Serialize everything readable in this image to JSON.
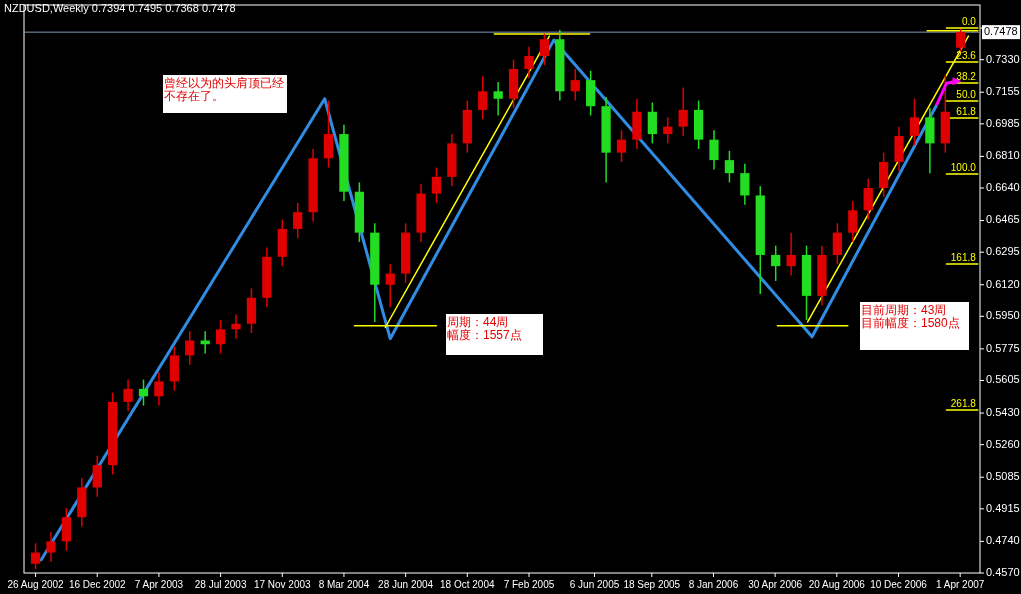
{
  "chart_data": {
    "type": "candlestick",
    "title": "NZDUSD,Weekly 0.7394 0.7495 0.7368 0.7478",
    "x": [
      "2002-08-26",
      "2002-09-23",
      "2002-10-21",
      "2002-11-18",
      "2002-12-16",
      "2003-01-13",
      "2003-02-10",
      "2003-03-10",
      "2003-04-07",
      "2003-05-05",
      "2003-06-02",
      "2003-06-30",
      "2003-07-28",
      "2003-08-25",
      "2003-09-22",
      "2003-10-20",
      "2003-11-17",
      "2003-12-15",
      "2004-01-12",
      "2004-02-09",
      "2004-03-08",
      "2004-04-05",
      "2004-05-03",
      "2004-05-31",
      "2004-06-28",
      "2004-07-26",
      "2004-08-23",
      "2004-09-20",
      "2004-10-18",
      "2004-11-15",
      "2004-12-13",
      "2005-01-10",
      "2005-02-07",
      "2005-03-07",
      "2005-04-04",
      "2005-05-02",
      "2005-05-30",
      "2005-06-27",
      "2005-07-25",
      "2005-08-22",
      "2005-09-19",
      "2005-10-17",
      "2005-11-14",
      "2005-12-12",
      "2006-01-09",
      "2006-02-06",
      "2006-03-06",
      "2006-04-03",
      "2006-05-01",
      "2006-05-29",
      "2006-06-26",
      "2006-07-24",
      "2006-08-21",
      "2006-09-18",
      "2006-10-16",
      "2006-11-13",
      "2006-12-11",
      "2007-01-08",
      "2007-02-05",
      "2007-03-05",
      "2007-04-02"
    ],
    "ohlc": [
      [
        0.462,
        0.473,
        0.459,
        0.468
      ],
      [
        0.468,
        0.479,
        0.463,
        0.474
      ],
      [
        0.474,
        0.492,
        0.469,
        0.487
      ],
      [
        0.487,
        0.508,
        0.482,
        0.503
      ],
      [
        0.503,
        0.52,
        0.498,
        0.515
      ],
      [
        0.515,
        0.554,
        0.51,
        0.549
      ],
      [
        0.549,
        0.561,
        0.544,
        0.556
      ],
      [
        0.556,
        0.561,
        0.547,
        0.552
      ],
      [
        0.552,
        0.565,
        0.547,
        0.56
      ],
      [
        0.56,
        0.579,
        0.555,
        0.574
      ],
      [
        0.574,
        0.587,
        0.569,
        0.582
      ],
      [
        0.582,
        0.587,
        0.575,
        0.58
      ],
      [
        0.58,
        0.593,
        0.575,
        0.588
      ],
      [
        0.588,
        0.596,
        0.583,
        0.591
      ],
      [
        0.591,
        0.61,
        0.586,
        0.605
      ],
      [
        0.605,
        0.632,
        0.6,
        0.627
      ],
      [
        0.627,
        0.647,
        0.622,
        0.642
      ],
      [
        0.642,
        0.656,
        0.637,
        0.651
      ],
      [
        0.651,
        0.685,
        0.646,
        0.68
      ],
      [
        0.68,
        0.711,
        0.675,
        0.693
      ],
      [
        0.693,
        0.698,
        0.657,
        0.662
      ],
      [
        0.662,
        0.667,
        0.635,
        0.64
      ],
      [
        0.64,
        0.645,
        0.592,
        0.612
      ],
      [
        0.612,
        0.623,
        0.6,
        0.618
      ],
      [
        0.618,
        0.645,
        0.613,
        0.64
      ],
      [
        0.64,
        0.666,
        0.635,
        0.661
      ],
      [
        0.661,
        0.675,
        0.656,
        0.67
      ],
      [
        0.67,
        0.693,
        0.665,
        0.688
      ],
      [
        0.688,
        0.711,
        0.683,
        0.706
      ],
      [
        0.706,
        0.724,
        0.701,
        0.716
      ],
      [
        0.716,
        0.721,
        0.703,
        0.712
      ],
      [
        0.712,
        0.733,
        0.707,
        0.728
      ],
      [
        0.728,
        0.74,
        0.723,
        0.735
      ],
      [
        0.735,
        0.747,
        0.73,
        0.744
      ],
      [
        0.744,
        0.749,
        0.711,
        0.716
      ],
      [
        0.716,
        0.728,
        0.711,
        0.722
      ],
      [
        0.722,
        0.727,
        0.703,
        0.708
      ],
      [
        0.708,
        0.713,
        0.667,
        0.683
      ],
      [
        0.683,
        0.695,
        0.678,
        0.69
      ],
      [
        0.69,
        0.712,
        0.685,
        0.705
      ],
      [
        0.705,
        0.71,
        0.688,
        0.693
      ],
      [
        0.693,
        0.702,
        0.688,
        0.697
      ],
      [
        0.697,
        0.718,
        0.692,
        0.706
      ],
      [
        0.706,
        0.711,
        0.685,
        0.69
      ],
      [
        0.69,
        0.695,
        0.674,
        0.679
      ],
      [
        0.679,
        0.684,
        0.667,
        0.672
      ],
      [
        0.672,
        0.677,
        0.655,
        0.66
      ],
      [
        0.66,
        0.665,
        0.607,
        0.628
      ],
      [
        0.628,
        0.633,
        0.614,
        0.622
      ],
      [
        0.622,
        0.64,
        0.617,
        0.628
      ],
      [
        0.628,
        0.633,
        0.593,
        0.606
      ],
      [
        0.606,
        0.633,
        0.601,
        0.628
      ],
      [
        0.628,
        0.645,
        0.623,
        0.64
      ],
      [
        0.64,
        0.657,
        0.635,
        0.652
      ],
      [
        0.652,
        0.669,
        0.647,
        0.664
      ],
      [
        0.664,
        0.683,
        0.659,
        0.678
      ],
      [
        0.678,
        0.697,
        0.673,
        0.692
      ],
      [
        0.692,
        0.712,
        0.687,
        0.702
      ],
      [
        0.702,
        0.707,
        0.672,
        0.688
      ],
      [
        0.688,
        0.725,
        0.683,
        0.705
      ],
      [
        0.7394,
        0.7495,
        0.7368,
        0.7478
      ]
    ],
    "colors": [
      "#e00000",
      "#e00000",
      "#e00000",
      "#e00000",
      "#e00000",
      "#e00000",
      "#e00000",
      "#22dd22",
      "#e00000",
      "#e00000",
      "#e00000",
      "#22dd22",
      "#e00000",
      "#e00000",
      "#e00000",
      "#e00000",
      "#e00000",
      "#e00000",
      "#e00000",
      "#e00000",
      "#22dd22",
      "#22dd22",
      "#22dd22",
      "#e00000",
      "#e00000",
      "#e00000",
      "#e00000",
      "#e00000",
      "#e00000",
      "#e00000",
      "#22dd22",
      "#e00000",
      "#e00000",
      "#e00000",
      "#22dd22",
      "#e00000",
      "#22dd22",
      "#22dd22",
      "#e00000",
      "#e00000",
      "#22dd22",
      "#e00000",
      "#e00000",
      "#22dd22",
      "#22dd22",
      "#22dd22",
      "#22dd22",
      "#22dd22",
      "#22dd22",
      "#e00000",
      "#22dd22",
      "#e00000",
      "#e00000",
      "#e00000",
      "#e00000",
      "#e00000",
      "#e00000",
      "#e00000",
      "#22dd22",
      "#e00000",
      "#e00000"
    ],
    "series": [
      {
        "type": "line",
        "color": "#2f8de4",
        "x": [
          "2002-09-05",
          "2004-02-02",
          "2004-05-31",
          "2005-03-24",
          "2006-07-06",
          "2007-02-17"
        ],
        "values": [
          0.464,
          0.712,
          0.583,
          0.7435,
          0.584,
          0.7085
        ]
      },
      {
        "type": "line",
        "color": "#ffff00",
        "x": [
          "2004-03-27",
          "2004-08-23"
        ],
        "values": [
          0.59,
          0.59
        ]
      },
      {
        "type": "line",
        "color": "#ffff00",
        "x": [
          "2004-05-22",
          "2005-03-16"
        ],
        "values": [
          0.589,
          0.7457
        ]
      },
      {
        "type": "line",
        "color": "#ffff00",
        "x": [
          "2004-12-06",
          "2005-05-28"
        ],
        "values": [
          0.7468,
          0.7468
        ]
      },
      {
        "type": "line",
        "color": "#ffff00",
        "x": [
          "2006-05-04",
          "2006-09-09"
        ],
        "values": [
          0.59,
          0.59
        ]
      },
      {
        "type": "line",
        "color": "#ffff00",
        "x": [
          "2006-06-28",
          "2007-04-16"
        ],
        "values": [
          0.592,
          0.7457
        ]
      },
      {
        "type": "line",
        "color": "#ffff00",
        "x": [
          "2007-01-31",
          "2007-05-03"
        ],
        "values": [
          0.7486,
          0.7486
        ]
      },
      {
        "type": "line",
        "color": "#ffff00",
        "x": [
          "2007-03-07",
          "2007-05-03"
        ],
        "values": [
          0.75,
          0.75
        ]
      },
      {
        "type": "line",
        "color": "#ffff00",
        "x": [
          "2007-03-07",
          "2007-05-03"
        ],
        "values": [
          0.7317,
          0.7317
        ]
      },
      {
        "type": "line",
        "color": "#ffff00",
        "x": [
          "2007-03-07",
          "2007-05-03"
        ],
        "values": [
          0.7204,
          0.7204
        ]
      },
      {
        "type": "line",
        "color": "#ffff00",
        "x": [
          "2007-03-07",
          "2007-05-03"
        ],
        "values": [
          0.7108,
          0.7108
        ]
      },
      {
        "type": "line",
        "color": "#ffff00",
        "x": [
          "2007-03-07",
          "2007-05-03"
        ],
        "values": [
          0.7016,
          0.7016
        ]
      },
      {
        "type": "line",
        "color": "#ffff00",
        "x": [
          "2007-03-07",
          "2007-05-03"
        ],
        "values": [
          0.6715,
          0.6715
        ]
      },
      {
        "type": "line",
        "color": "#ffff00",
        "x": [
          "2007-03-07",
          "2007-05-03"
        ],
        "values": [
          0.6231,
          0.6231
        ]
      },
      {
        "type": "line",
        "color": "#ffff00",
        "x": [
          "2007-03-07",
          "2007-05-03"
        ],
        "values": [
          0.5446,
          0.5446
        ]
      }
    ],
    "xlim": [
      "2002-08-05",
      "2007-05-07"
    ],
    "xticks": [
      {
        "value": "2002-08-26",
        "label": "26 Aug 2002"
      },
      {
        "value": "2002-12-16",
        "label": "16 Dec 2002"
      },
      {
        "value": "2003-04-07",
        "label": "7 Apr 2003"
      },
      {
        "value": "2003-07-28",
        "label": "28 Jul 2003"
      },
      {
        "value": "2003-11-17",
        "label": "17 Nov 2003"
      },
      {
        "value": "2004-03-08",
        "label": "8 Mar 2004"
      },
      {
        "value": "2004-06-28",
        "label": "28 Jun 2004"
      },
      {
        "value": "2004-10-18",
        "label": "18 Oct 2004"
      },
      {
        "value": "2005-02-07",
        "label": "7 Feb 2005"
      },
      {
        "value": "2005-06-06",
        "label": "6 Jun 2005"
      },
      {
        "value": "2005-09-18",
        "label": "18 Sep 2005"
      },
      {
        "value": "2006-01-08",
        "label": "8 Jan 2006"
      },
      {
        "value": "2006-04-30",
        "label": "30 Apr 2006"
      },
      {
        "value": "2006-08-20",
        "label": "20 Aug 2006"
      },
      {
        "value": "2006-12-10",
        "label": "10 Dec 2006"
      },
      {
        "value": "2007-04-01",
        "label": "1 Apr 2007"
      }
    ],
    "ylim": [
      0.457,
      0.7624
    ],
    "yticks": [
      {
        "value": 0.75,
        "label": null
      },
      {
        "value": 0.733,
        "label": "0.7330"
      },
      0.7155,
      0.6985,
      {
        "value": 0.681,
        "label": "0.6810"
      },
      {
        "value": 0.664,
        "label": "0.6640"
      },
      0.6465,
      0.6295,
      {
        "value": 0.612,
        "label": "0.6120"
      },
      {
        "value": 0.595,
        "label": "0.5950"
      },
      0.5775,
      0.5605,
      {
        "value": 0.543,
        "label": "0.5430"
      },
      {
        "value": 0.526,
        "label": "0.5260"
      },
      0.5085,
      0.4915,
      {
        "value": 0.474,
        "label": "0.4740"
      },
      {
        "value": 0.457,
        "label": "0.4570"
      }
    ],
    "ref_lines": [
      {
        "axis": "y",
        "value": 0.7478,
        "label": "0.7478",
        "color": "#7f9db9"
      }
    ],
    "annotations": [
      "曾经以为的头肩顶已经不存在了。",
      "周期：44周幅度：1557点",
      "目前周期：43周目前幅度：1580点",
      {
        "text": "0.0",
        "x": "2007-05-03",
        "y": 0.75
      },
      {
        "text": "23.6",
        "x": "2007-05-03",
        "y": 0.7317
      },
      {
        "text": "38.2",
        "x": "2007-05-03",
        "y": 0.7204
      },
      {
        "text": "50.0",
        "x": "2007-05-03",
        "y": 0.7108
      },
      {
        "text": "61.8",
        "x": "2007-05-03",
        "y": 0.7016
      },
      {
        "text": "100.0",
        "x": "2007-05-03",
        "y": 0.6715
      },
      {
        "text": "161.8",
        "x": "2007-05-03",
        "y": 0.6231
      },
      {
        "text": "261.8",
        "x": "2007-05-03",
        "y": 0.5446
      }
    ]
  }
}
